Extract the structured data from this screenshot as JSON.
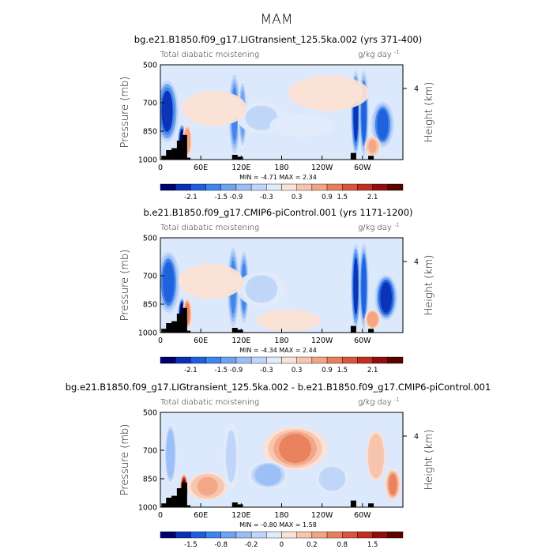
{
  "page_title": "MAM",
  "chart_data": [
    {
      "type": "heatmap",
      "title": "bg.e21.B1850.f09_g17.LIGtransient_125.5ka.002 (yrs 371-400)",
      "left_label": "Total diabatic moistening",
      "units": "g/kg day",
      "units_exp": "-1",
      "ylabel": "Pressure (mb)",
      "ylabel_right": "Height (km)",
      "y_ticks": [
        "500",
        "700",
        "850",
        "1000"
      ],
      "y_tick_values": [
        500,
        700,
        850,
        1000
      ],
      "ylim": [
        1000,
        500
      ],
      "right_ticks": [
        "4"
      ],
      "x_ticks": [
        "0",
        "60E",
        "120E",
        "180",
        "120W",
        "60W"
      ],
      "x_tick_values": [
        0,
        60,
        120,
        180,
        240,
        300
      ],
      "xlim": [
        0,
        360
      ],
      "min_label": "MIN =",
      "min_value": "-4.71",
      "max_label": "MAX =",
      "max_value": "2.34",
      "colorbar_labels": [
        "-2.1",
        "-1.5",
        "-0.9",
        "-0.3",
        "0.3",
        "0.9",
        "1.5",
        "2.1"
      ],
      "colorbar_colors": [
        "#00006e",
        "#0b2fb5",
        "#1f5fdd",
        "#3f84ea",
        "#6fa3f0",
        "#9bbff5",
        "#c0d6f8",
        "#e1ebfb",
        "#fbe2d6",
        "#f7c5ad",
        "#f2a486",
        "#e87f5c",
        "#d9563a",
        "#bf3020",
        "#8e0f0b",
        "#5c0000"
      ],
      "features": [
        {
          "lon": 10,
          "p_top": 590,
          "p_bot": 900,
          "value": -3.5,
          "width": 14
        },
        {
          "lon": 32,
          "p_top": 820,
          "p_bot": 1000,
          "value": -4.5,
          "width": 5
        },
        {
          "lon": 40,
          "p_top": 820,
          "p_bot": 980,
          "value": 1.6,
          "width": 6
        },
        {
          "lon": 110,
          "p_top": 560,
          "p_bot": 960,
          "value": -2.5,
          "width": 7
        },
        {
          "lon": 122,
          "p_top": 580,
          "p_bot": 940,
          "value": -2.0,
          "width": 6
        },
        {
          "lon": 150,
          "p_top": 700,
          "p_bot": 860,
          "value": -0.9,
          "width": 30
        },
        {
          "lon": 210,
          "p_top": 760,
          "p_bot": 880,
          "value": -0.5,
          "width": 40
        },
        {
          "lon": 290,
          "p_top": 540,
          "p_bot": 970,
          "value": -3.5,
          "width": 6
        },
        {
          "lon": 302,
          "p_top": 540,
          "p_bot": 970,
          "value": -3.0,
          "width": 6
        },
        {
          "lon": 330,
          "p_top": 700,
          "p_bot": 930,
          "value": -3.0,
          "width": 14
        },
        {
          "lon": 315,
          "p_top": 880,
          "p_bot": 980,
          "value": 1.4,
          "width": 10
        },
        {
          "lon": 80,
          "p_top": 640,
          "p_bot": 820,
          "value": 0.4,
          "width": 40
        },
        {
          "lon": 250,
          "p_top": 560,
          "p_bot": 740,
          "value": 0.3,
          "width": 50
        }
      ],
      "terrain": [
        [
          5,
          980
        ],
        [
          12,
          950
        ],
        [
          20,
          940
        ],
        [
          28,
          900
        ],
        [
          35,
          870
        ],
        [
          40,
          990
        ],
        [
          110,
          975
        ],
        [
          118,
          985
        ],
        [
          286,
          965
        ],
        [
          312,
          980
        ]
      ]
    },
    {
      "type": "heatmap",
      "title": "b.e21.B1850.f09_g17.CMIP6-piControl.001 (yrs 1171-1200)",
      "left_label": "Total diabatic moistening",
      "units": "g/kg day",
      "units_exp": "-1",
      "ylabel": "Pressure (mb)",
      "ylabel_right": "Height (km)",
      "y_ticks": [
        "500",
        "700",
        "850",
        "1000"
      ],
      "y_tick_values": [
        500,
        700,
        850,
        1000
      ],
      "ylim": [
        1000,
        500
      ],
      "right_ticks": [
        "4"
      ],
      "x_ticks": [
        "0",
        "60E",
        "120E",
        "180",
        "120W",
        "60W"
      ],
      "x_tick_values": [
        0,
        60,
        120,
        180,
        240,
        300
      ],
      "xlim": [
        0,
        360
      ],
      "min_label": "MIN =",
      "min_value": "-4.34",
      "max_label": "MAX =",
      "max_value": "2.44",
      "colorbar_labels": [
        "-2.1",
        "-1.5",
        "-0.9",
        "-0.3",
        "0.3",
        "0.9",
        "1.5",
        "2.1"
      ],
      "colorbar_colors": [
        "#00006e",
        "#0b2fb5",
        "#1f5fdd",
        "#3f84ea",
        "#6fa3f0",
        "#9bbff5",
        "#c0d6f8",
        "#e1ebfb",
        "#fbe2d6",
        "#f7c5ad",
        "#f2a486",
        "#e87f5c",
        "#d9563a",
        "#bf3020",
        "#8e0f0b",
        "#5c0000"
      ],
      "features": [
        {
          "lon": 12,
          "p_top": 580,
          "p_bot": 890,
          "value": -3.2,
          "width": 14
        },
        {
          "lon": 32,
          "p_top": 820,
          "p_bot": 1000,
          "value": -4.3,
          "width": 5
        },
        {
          "lon": 40,
          "p_top": 820,
          "p_bot": 980,
          "value": 1.7,
          "width": 6
        },
        {
          "lon": 108,
          "p_top": 560,
          "p_bot": 960,
          "value": -2.6,
          "width": 7
        },
        {
          "lon": 124,
          "p_top": 580,
          "p_bot": 940,
          "value": -2.2,
          "width": 6
        },
        {
          "lon": 150,
          "p_top": 680,
          "p_bot": 860,
          "value": -0.8,
          "width": 30
        },
        {
          "lon": 290,
          "p_top": 540,
          "p_bot": 970,
          "value": -3.4,
          "width": 6
        },
        {
          "lon": 302,
          "p_top": 540,
          "p_bot": 970,
          "value": -3.1,
          "width": 6
        },
        {
          "lon": 335,
          "p_top": 700,
          "p_bot": 930,
          "value": -3.6,
          "width": 14
        },
        {
          "lon": 315,
          "p_top": 880,
          "p_bot": 980,
          "value": 1.5,
          "width": 10
        },
        {
          "lon": 190,
          "p_top": 880,
          "p_bot": 990,
          "value": 0.5,
          "width": 40
        },
        {
          "lon": 75,
          "p_top": 640,
          "p_bot": 820,
          "value": 0.4,
          "width": 40
        }
      ],
      "terrain": [
        [
          5,
          980
        ],
        [
          12,
          950
        ],
        [
          20,
          940
        ],
        [
          28,
          900
        ],
        [
          35,
          870
        ],
        [
          40,
          990
        ],
        [
          110,
          975
        ],
        [
          118,
          985
        ],
        [
          286,
          965
        ],
        [
          312,
          980
        ]
      ]
    },
    {
      "type": "heatmap",
      "title": "bg.e21.B1850.f09_g17.LIGtransient_125.5ka.002 - b.e21.B1850.f09_g17.CMIP6-piControl.001",
      "left_label": "Total diabatic moistening",
      "units": "g/kg day",
      "units_exp": "-1",
      "ylabel": "Pressure (mb)",
      "ylabel_right": "Height (km)",
      "y_ticks": [
        "500",
        "700",
        "850",
        "1000"
      ],
      "y_tick_values": [
        500,
        700,
        850,
        1000
      ],
      "ylim": [
        1000,
        500
      ],
      "right_ticks": [
        "4"
      ],
      "x_ticks": [
        "0",
        "60E",
        "120E",
        "180",
        "120W",
        "60W"
      ],
      "x_tick_values": [
        0,
        60,
        120,
        180,
        240,
        300
      ],
      "xlim": [
        0,
        360
      ],
      "min_label": "MIN =",
      "min_value": "-0.80",
      "max_label": "MAX =",
      "max_value": "1.58",
      "colorbar_labels": [
        "-1.5",
        "-0.8",
        "-0.2",
        "0",
        "0.2",
        "0.8",
        "1.5"
      ],
      "colorbar_colors": [
        "#00006e",
        "#0b2fb5",
        "#1f5fdd",
        "#3f84ea",
        "#6fa3f0",
        "#9bbff5",
        "#c0d6f8",
        "#e1ebfb",
        "#fbe2d6",
        "#f7c5ad",
        "#f2a486",
        "#e87f5c",
        "#d9563a",
        "#bf3020",
        "#8e0f0b",
        "#5c0000"
      ],
      "features": [
        {
          "lon": 15,
          "p_top": 560,
          "p_bot": 880,
          "value": -0.4,
          "width": 8
        },
        {
          "lon": 35,
          "p_top": 830,
          "p_bot": 990,
          "value": 1.2,
          "width": 5
        },
        {
          "lon": 200,
          "p_top": 580,
          "p_bot": 800,
          "value": 0.5,
          "width": 40
        },
        {
          "lon": 160,
          "p_top": 760,
          "p_bot": 900,
          "value": -0.4,
          "width": 25
        },
        {
          "lon": 70,
          "p_top": 820,
          "p_bot": 960,
          "value": 0.4,
          "width": 25
        },
        {
          "lon": 255,
          "p_top": 780,
          "p_bot": 920,
          "value": -0.3,
          "width": 20
        },
        {
          "lon": 320,
          "p_top": 600,
          "p_bot": 860,
          "value": 0.3,
          "width": 12
        },
        {
          "lon": 345,
          "p_top": 800,
          "p_bot": 960,
          "value": 0.5,
          "width": 10
        },
        {
          "lon": 105,
          "p_top": 560,
          "p_bot": 900,
          "value": -0.2,
          "width": 10
        }
      ],
      "terrain": [
        [
          5,
          980
        ],
        [
          12,
          950
        ],
        [
          20,
          940
        ],
        [
          28,
          900
        ],
        [
          35,
          870
        ],
        [
          40,
          990
        ],
        [
          110,
          975
        ],
        [
          118,
          985
        ],
        [
          286,
          965
        ],
        [
          312,
          980
        ]
      ]
    }
  ]
}
